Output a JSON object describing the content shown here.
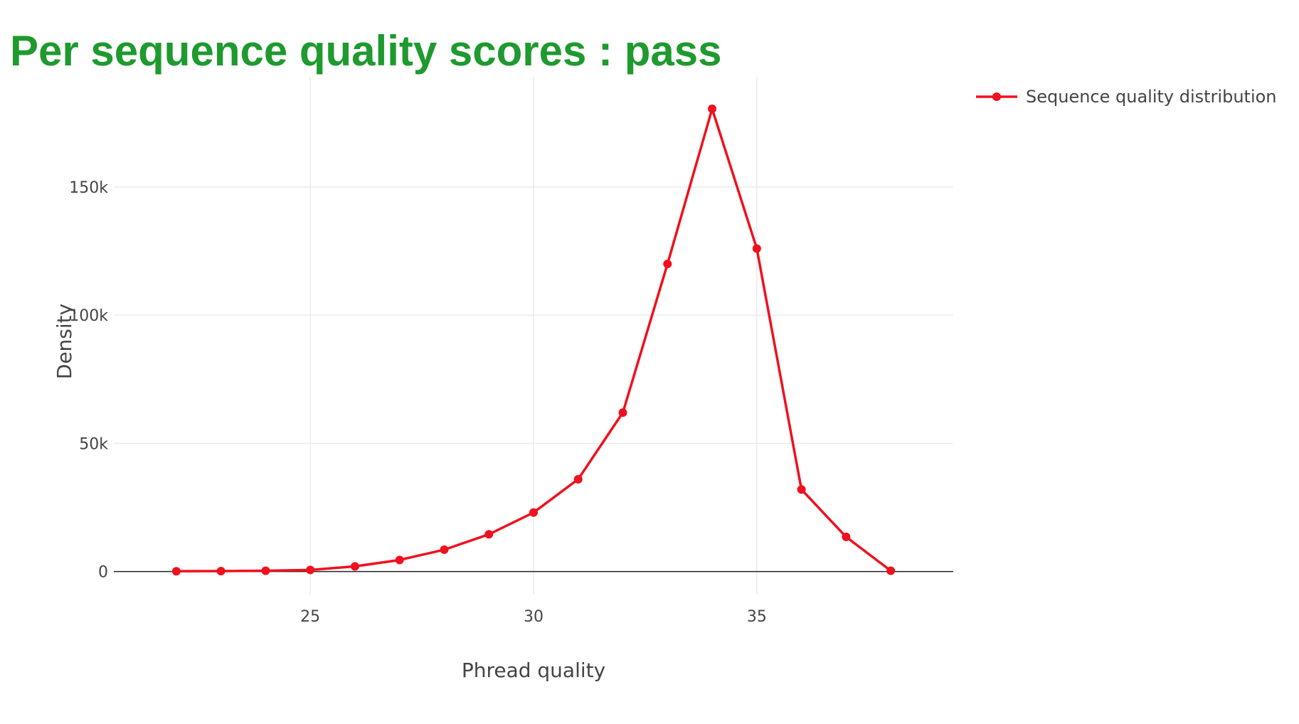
{
  "title": "Per sequence quality scores : pass",
  "colors": {
    "title": "#1e9a2e",
    "series": "#f0101e",
    "grid": "#ebebeb",
    "zeroline": "#222222",
    "text": "#444444"
  },
  "chart_data": {
    "type": "line",
    "xlabel": "Phread quality",
    "ylabel": "Density",
    "xlim": [
      20.6,
      39.4
    ],
    "ylim": [
      -9000,
      193000
    ],
    "x_ticks": [
      25,
      30,
      35
    ],
    "x_tick_labels": [
      "25",
      "30",
      "35"
    ],
    "y_ticks": [
      0,
      50000,
      100000,
      150000
    ],
    "y_tick_labels": [
      "0",
      "50k",
      "100k",
      "150k"
    ],
    "grid": true,
    "legend_position": "top-right",
    "series": [
      {
        "name": "Sequence quality distribution",
        "x": [
          22,
          23,
          24,
          25,
          26,
          27,
          28,
          29,
          30,
          31,
          32,
          33,
          34,
          35,
          36,
          37,
          38
        ],
        "y": [
          100,
          150,
          300,
          600,
          2000,
          4500,
          8500,
          14500,
          23000,
          36000,
          62000,
          120000,
          180500,
          126000,
          32000,
          13500,
          300
        ]
      }
    ]
  }
}
